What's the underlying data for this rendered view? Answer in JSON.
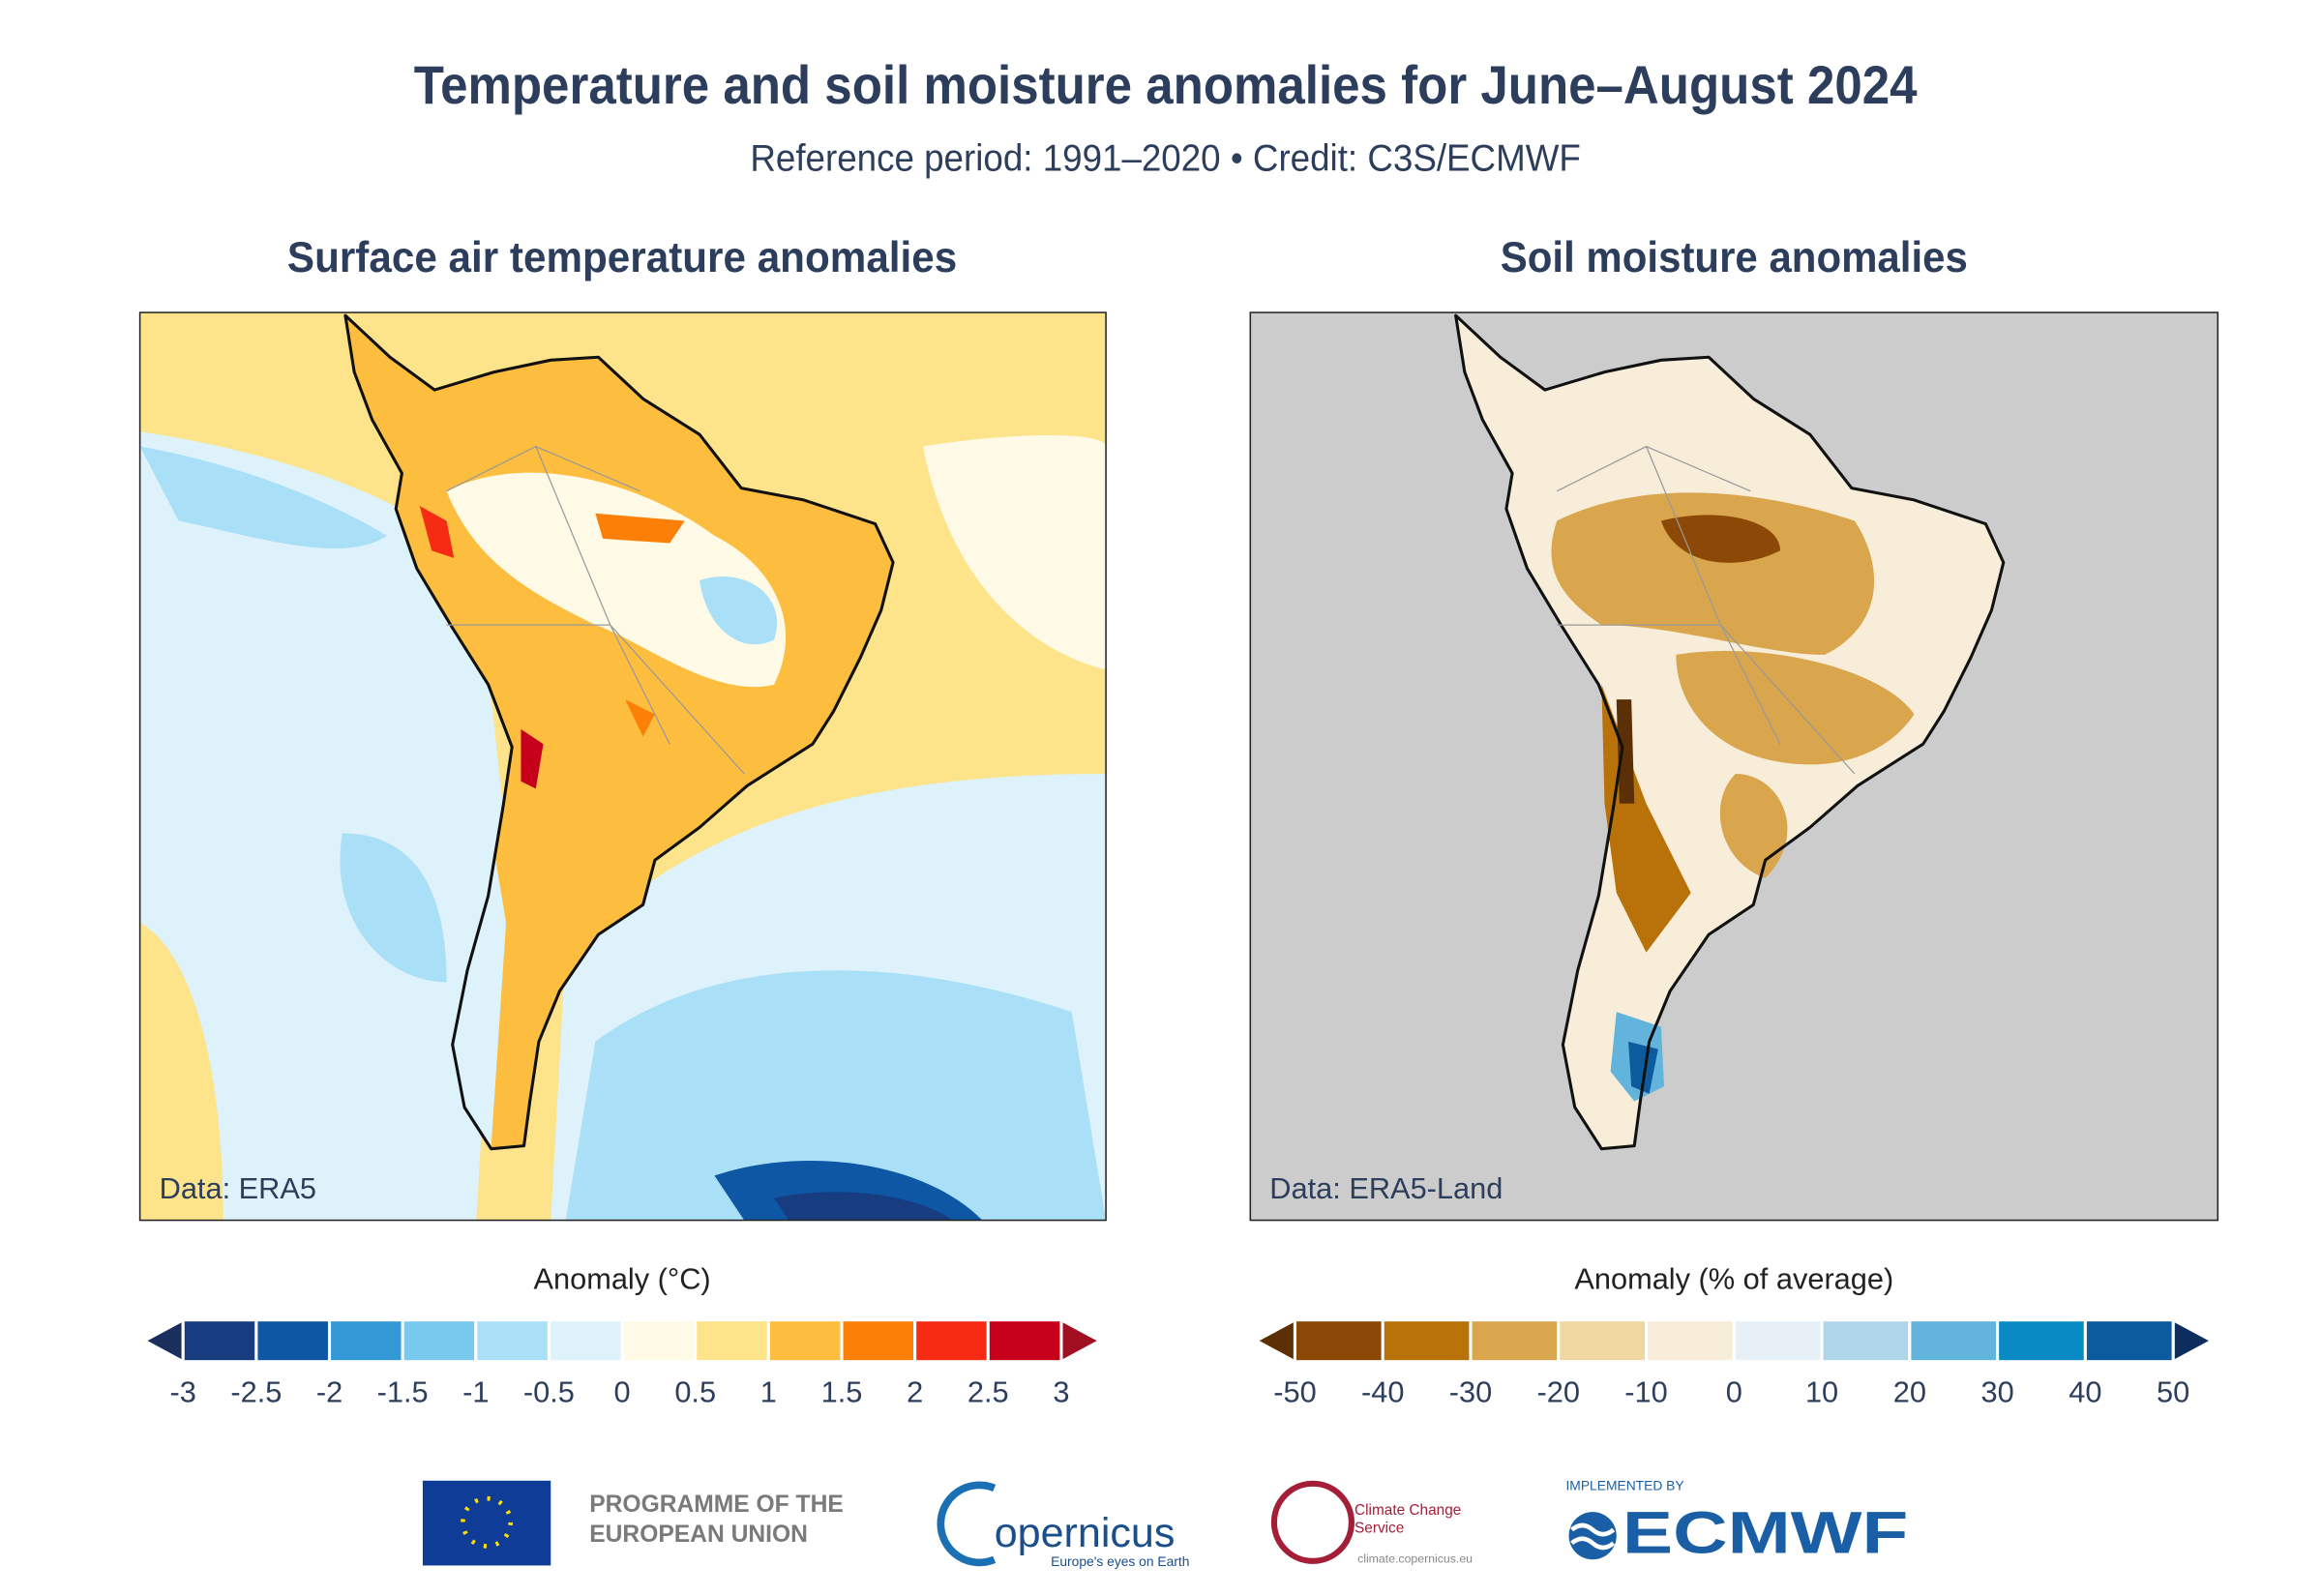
{
  "header": {
    "title": "Temperature and soil moisture anomalies for June–August 2024",
    "subtitle": "Reference period: 1991–2020 • Credit: C3S/ECMWF"
  },
  "panels": [
    {
      "title": "Surface air temperature anomalies",
      "data_label": "Data: ERA5",
      "colorbar": {
        "label": "Anomaly (°C)",
        "ticks": [
          -3,
          -2.5,
          -2,
          -1.5,
          -1,
          -0.5,
          0,
          0.5,
          1,
          1.5,
          2,
          2.5,
          3
        ],
        "colors": [
          "#173c80",
          "#0d57a5",
          "#3399d6",
          "#79c8ee",
          "#a9e0f7",
          "#ddf2fa",
          "#fffae6",
          "#fde38a",
          "#fdbd3f",
          "#fc7f07",
          "#f62b14",
          "#c6001b"
        ],
        "under_color": "#1a2f5e",
        "over_color": "#a30f22"
      }
    },
    {
      "title": "Soil moisture anomalies",
      "data_label": "Data: ERA5-Land",
      "colorbar": {
        "label": "Anomaly (% of average)",
        "ticks": [
          -50,
          -40,
          -30,
          -20,
          -10,
          0,
          10,
          20,
          30,
          40,
          50
        ],
        "colors": [
          "#8b4806",
          "#b87209",
          "#d9a54d",
          "#f0d7a0",
          "#f7edd8",
          "#e6f0f6",
          "#afd6e8",
          "#62b4dc",
          "#0a8ac4",
          "#0d5b9f"
        ],
        "under_color": "#5c3006",
        "over_color": "#0d2d5e"
      }
    }
  ],
  "footer": {
    "eu": "PROGRAMME OF THE EUROPEAN UNION",
    "copernicus": "opernicus",
    "copernicus_tagline": "Europe's eyes on Earth",
    "c3s": "Climate Change Service",
    "c3s_url": "climate.copernicus.eu",
    "implemented_by": "IMPLEMENTED BY",
    "ecmwf": "ECMWF"
  }
}
